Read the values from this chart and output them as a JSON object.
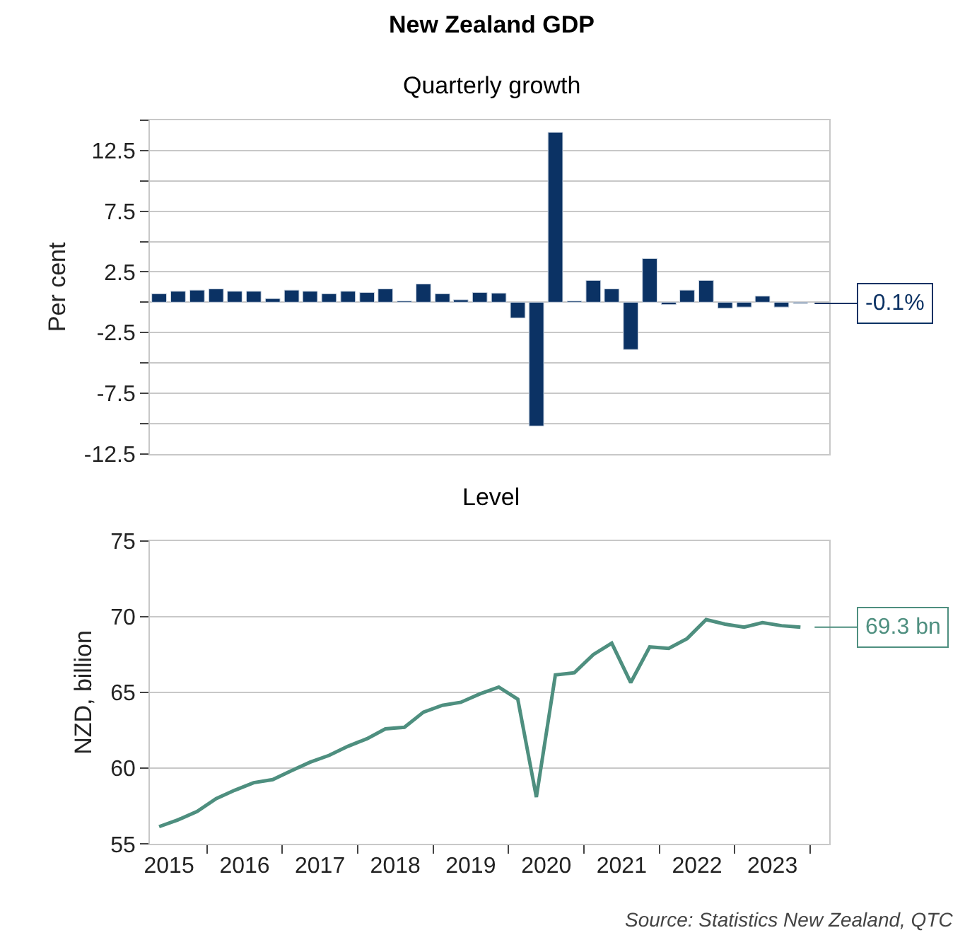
{
  "chart_data": [
    {
      "type": "bar",
      "title": "New Zealand GDP",
      "subtitle": "Quarterly growth",
      "ylabel": "Per cent",
      "color": "#0b3264",
      "x": [
        "2015-05-15",
        "2015-08-15",
        "2015-11-15",
        "2016-02-15",
        "2016-05-15",
        "2016-08-15",
        "2016-11-15",
        "2017-02-15",
        "2017-05-15",
        "2017-08-15",
        "2017-11-15",
        "2018-02-15",
        "2018-05-15",
        "2018-08-15",
        "2018-11-15",
        "2019-02-15",
        "2019-05-15",
        "2019-08-15",
        "2019-11-15",
        "2020-02-15",
        "2020-05-15",
        "2020-08-15",
        "2020-11-15",
        "2021-02-15",
        "2021-05-15",
        "2021-08-15",
        "2021-11-15",
        "2022-02-15",
        "2022-05-15",
        "2022-08-15",
        "2022-11-15",
        "2023-02-15",
        "2023-05-15",
        "2023-08-15",
        "2023-11-15"
      ],
      "values": [
        0.7,
        0.9,
        1.0,
        1.1,
        0.9,
        0.9,
        0.3,
        1.0,
        0.9,
        0.7,
        0.9,
        0.8,
        1.1,
        0.1,
        1.5,
        0.7,
        0.2,
        0.8,
        0.75,
        -1.3,
        -10.2,
        14.0,
        0.1,
        1.8,
        1.1,
        -3.9,
        3.6,
        -0.2,
        1.0,
        1.8,
        -0.5,
        -0.4,
        0.5,
        -0.4,
        -0.1
      ],
      "xlim": [
        "2015-04-01",
        "2024-04-01"
      ],
      "ylim": [
        -12.5,
        15
      ],
      "yticks": [
        -12.5,
        {
          "value": -10,
          "label": null
        },
        -7.5,
        {
          "value": -5,
          "label": null
        },
        -2.5,
        {
          "value": 0,
          "label": null
        },
        2.5,
        {
          "value": 5,
          "label": null
        },
        7.5,
        {
          "value": 10,
          "label": null
        },
        12.5,
        {
          "value": 15,
          "label": null
        }
      ],
      "grid": "y",
      "tick_labels": "y",
      "annotations": [
        {
          "text": "-0.1%",
          "x": "2023-11-15",
          "y": -0.1
        }
      ]
    },
    {
      "type": "line",
      "title": "Level",
      "ylabel": "NZD, billion",
      "color": "#4e8f7f",
      "x": [
        "2015-05-15",
        "2015-08-15",
        "2015-11-15",
        "2016-02-15",
        "2016-05-15",
        "2016-08-15",
        "2016-11-15",
        "2017-02-15",
        "2017-05-15",
        "2017-08-15",
        "2017-11-15",
        "2018-02-15",
        "2018-05-15",
        "2018-08-15",
        "2018-11-15",
        "2019-02-15",
        "2019-05-15",
        "2019-08-15",
        "2019-11-15",
        "2020-02-15",
        "2020-05-15",
        "2020-08-15",
        "2020-11-15",
        "2021-02-15",
        "2021-05-15",
        "2021-08-15",
        "2021-11-15",
        "2022-02-15",
        "2022-05-15",
        "2022-08-15",
        "2022-11-15",
        "2023-02-15",
        "2023-05-15",
        "2023-08-15",
        "2023-11-15"
      ],
      "values": [
        56.15,
        56.6,
        57.15,
        58.0,
        58.55,
        59.05,
        59.25,
        59.85,
        60.4,
        60.85,
        61.45,
        61.95,
        62.6,
        62.7,
        63.7,
        64.15,
        64.35,
        64.9,
        65.35,
        64.55,
        58.1,
        66.15,
        66.3,
        67.5,
        68.25,
        65.65,
        68.0,
        67.9,
        68.55,
        69.8,
        69.5,
        69.3,
        69.6,
        69.4,
        69.3
      ],
      "xlim": [
        "2015-04-01",
        "2024-04-01"
      ],
      "ylim": [
        55,
        75
      ],
      "yticks": [
        55,
        60,
        65,
        70,
        75
      ],
      "xticks": [
        {
          "value": "2015-07-02",
          "label": "2015"
        },
        {
          "value": "2016-01-01",
          "label": null
        },
        {
          "value": "2016-07-02",
          "label": "2016"
        },
        {
          "value": "2017-01-01",
          "label": null
        },
        {
          "value": "2017-07-02",
          "label": "2017"
        },
        {
          "value": "2018-01-01",
          "label": null
        },
        {
          "value": "2018-07-02",
          "label": "2018"
        },
        {
          "value": "2019-01-01",
          "label": null
        },
        {
          "value": "2019-07-02",
          "label": "2019"
        },
        {
          "value": "2020-01-01",
          "label": null
        },
        {
          "value": "2020-07-02",
          "label": "2020"
        },
        {
          "value": "2021-01-01",
          "label": null
        },
        {
          "value": "2021-07-02",
          "label": "2021"
        },
        {
          "value": "2022-01-01",
          "label": null
        },
        {
          "value": "2022-07-02",
          "label": "2022"
        },
        {
          "value": "2023-01-01",
          "label": null
        },
        {
          "value": "2023-07-02",
          "label": "2023"
        },
        {
          "value": "2024-01-01",
          "label": null
        }
      ],
      "grid": "y",
      "annotations": [
        {
          "text": "69.3 bn",
          "x": "2023-11-15",
          "y": 69.3
        },
        "Source: Statistics New Zealand, QTC"
      ]
    }
  ]
}
